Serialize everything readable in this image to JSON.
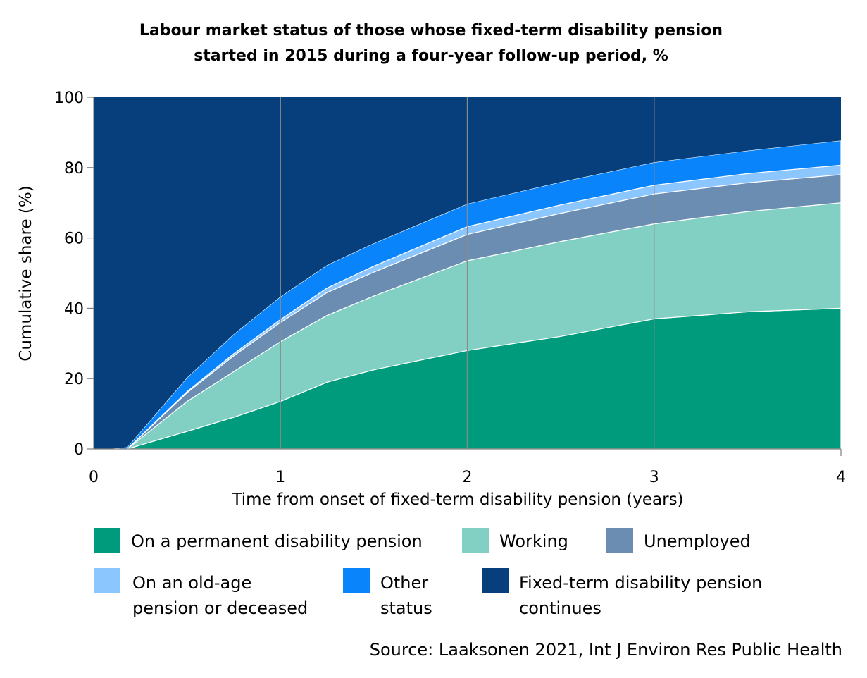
{
  "chart_data": {
    "type": "area",
    "stacked": true,
    "title": [
      "Labour market status of those whose fixed-term disability pension",
      "started in 2015 during a four-year follow-up period, %"
    ],
    "xlabel": "Time from onset of fixed-term disability pension (years)",
    "ylabel": "Cumulative share (%)",
    "xlim": [
      0,
      4
    ],
    "ylim": [
      0,
      100
    ],
    "x_ticks": [
      "0",
      "1",
      "2",
      "3",
      "4"
    ],
    "y_ticks": [
      "0",
      "20",
      "40",
      "60",
      "80",
      "100"
    ],
    "grid": "vertical",
    "x": [
      0,
      0.08,
      0.18,
      0.5,
      0.75,
      1.0,
      1.25,
      1.5,
      2.0,
      2.5,
      3.0,
      3.5,
      4.0
    ],
    "series": [
      {
        "name": "On a permanent disability pension",
        "color": "#009a7c",
        "values": [
          0,
          0,
          0,
          5,
          9,
          13.5,
          19,
          22.5,
          28,
          32,
          37,
          39,
          40
        ]
      },
      {
        "name": "Working",
        "color": "#82d0c4",
        "values": [
          0,
          0,
          0,
          8.5,
          13,
          17,
          19,
          21,
          25.5,
          27,
          27,
          28.5,
          30
        ]
      },
      {
        "name": "Unemployed",
        "color": "#6b8db1",
        "values": [
          0,
          0,
          0,
          2.5,
          4.5,
          5.5,
          6.5,
          6.8,
          7.5,
          8,
          8.5,
          8.2,
          8
        ]
      },
      {
        "name": "On an old-age pension or deceased",
        "color": "#8cc6ff",
        "values": [
          0,
          0,
          0,
          0.3,
          0.6,
          0.8,
          1.3,
          1.7,
          2.2,
          2.4,
          2.5,
          2.6,
          2.7
        ]
      },
      {
        "name": "Other status",
        "color": "#0a84fb",
        "values": [
          0,
          0,
          0.5,
          4,
          5.5,
          6.5,
          6.5,
          6.5,
          6.5,
          6.5,
          6.5,
          6.5,
          7
        ]
      },
      {
        "name": "Fixed-term disability pension continues",
        "color": "#063f7c",
        "values": [
          100,
          100,
          99.5,
          79.7,
          67.4,
          56.7,
          47.7,
          41.5,
          30.3,
          24.1,
          18.5,
          15.2,
          12.3
        ]
      }
    ],
    "legend": {
      "placement": "bottom",
      "entries": [
        {
          "lines": [
            "On a permanent disability pension"
          ],
          "color": "#009a7c"
        },
        {
          "lines": [
            "Working"
          ],
          "color": "#82d0c4"
        },
        {
          "lines": [
            "Unemployed"
          ],
          "color": "#6b8db1"
        },
        {
          "lines": [
            "On an old-age",
            "pension or deceased"
          ],
          "color": "#8cc6ff"
        },
        {
          "lines": [
            "Other",
            "status"
          ],
          "color": "#0a84fb"
        },
        {
          "lines": [
            "Fixed-term disability pension",
            "continues"
          ],
          "color": "#063f7c"
        }
      ]
    },
    "source": "Source: Laaksonen 2021, Int J Environ Res Public Health"
  }
}
